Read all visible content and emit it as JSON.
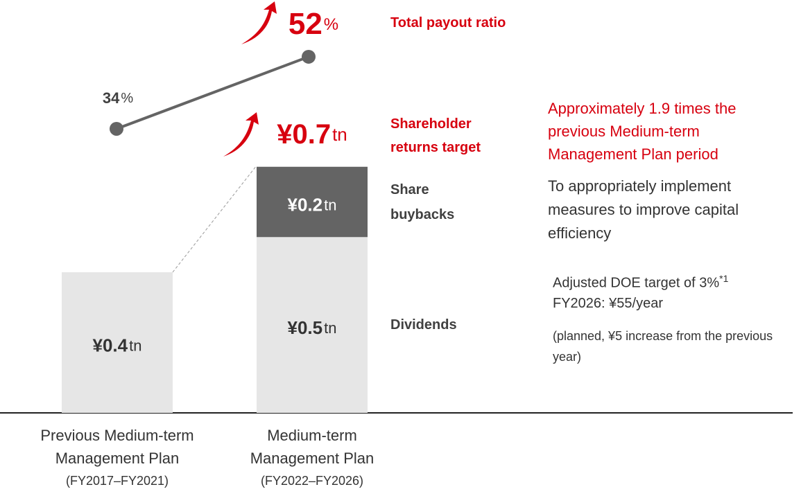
{
  "chart_data": {
    "type": "bar",
    "categories": [
      "Previous Medium-term Management Plan",
      "Medium-term Management Plan"
    ],
    "category_periods": [
      "(FY2017–FY2021)",
      "(FY2022–FY2026)"
    ],
    "unit": "tn",
    "series": [
      {
        "name": "Dividends",
        "color": "#e6e6e6",
        "label_color": "#333333",
        "values": [
          0.4,
          0.5
        ],
        "value_labels": [
          "¥0.4",
          "¥0.5"
        ]
      },
      {
        "name": "Share buybacks",
        "color": "#646464",
        "label_color": "#ffffff",
        "values": [
          null,
          0.2
        ],
        "value_labels": [
          null,
          "¥0.2"
        ]
      }
    ],
    "total": {
      "name": "Shareholder returns target",
      "value": 0.7,
      "value_label": "¥0.7",
      "color": "#d7000f"
    },
    "line": {
      "name": "Total payout ratio",
      "values": [
        34,
        52
      ],
      "unit": "%",
      "color": "#646464"
    },
    "notes": {
      "headline": "Approximately 1.9 times the previous Medium-term Management Plan period",
      "buybacks": "To appropriately implement measures to improve capital efficiency",
      "dividends": "Adjusted DOE target of 3%",
      "dividends_footnote": "*1",
      "dividends_detail": "FY2026: ¥55/year",
      "dividends_sub": "(planned, ¥5 increase from the previous year)"
    }
  }
}
